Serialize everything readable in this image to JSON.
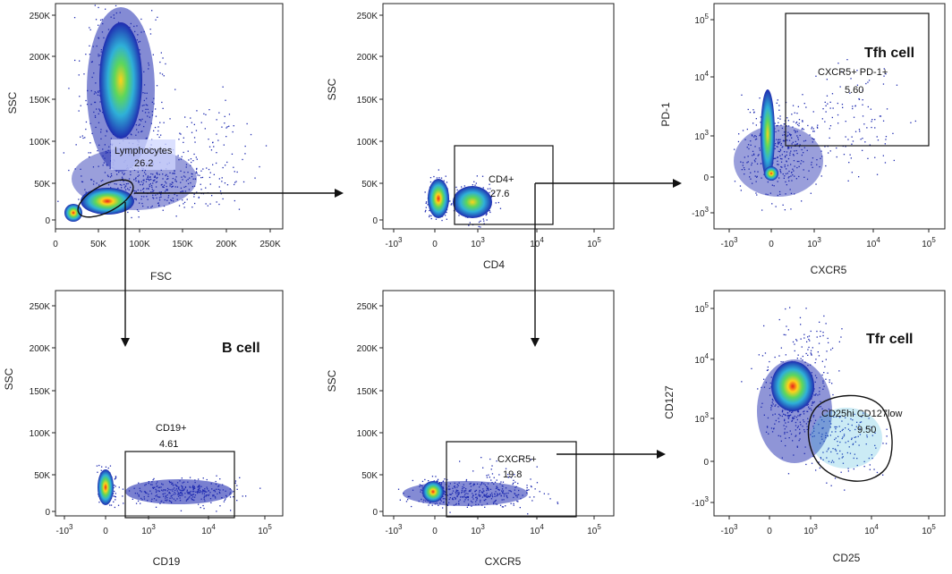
{
  "chart_data": [
    {
      "id": "fsc-ssc",
      "type": "scatter",
      "xlabel": "FSC",
      "ylabel": "SSC",
      "xticks": [
        "0",
        "50K",
        "100K",
        "150K",
        "200K",
        "250K"
      ],
      "yticks": [
        "0",
        "50K",
        "100K",
        "150K",
        "200K",
        "250K"
      ],
      "xlim": [
        0,
        262144
      ],
      "ylim": [
        0,
        262144
      ],
      "gate": {
        "name": "Lymphocytes",
        "value": "26.2"
      }
    },
    {
      "id": "cd4-ssc",
      "type": "scatter",
      "xlabel": "CD4",
      "ylabel": "SSC",
      "xticks": [
        "-10^3",
        "0",
        "10^3",
        "10^4",
        "10^5"
      ],
      "yticks": [
        "0",
        "50K",
        "100K",
        "150K",
        "200K",
        "250K"
      ],
      "gate": {
        "name": "CD4+",
        "value": "27.6"
      }
    },
    {
      "id": "cxcr5-pd1",
      "type": "scatter",
      "xlabel": "CXCR5",
      "ylabel": "PD-1",
      "xticks": [
        "-10^3",
        "0",
        "10^3",
        "10^4",
        "10^5"
      ],
      "yticks": [
        "-10^3",
        "0",
        "10^3",
        "10^4",
        "10^5"
      ],
      "gate": {
        "name": "CXCR5+ PD-1+",
        "value": "5.60"
      },
      "population": "Tfh cell"
    },
    {
      "id": "cd19-ssc",
      "type": "scatter",
      "xlabel": "CD19",
      "ylabel": "SSC",
      "xticks": [
        "-10^3",
        "0",
        "10^3",
        "10^4",
        "10^5"
      ],
      "yticks": [
        "0",
        "50K",
        "100K",
        "150K",
        "200K",
        "250K"
      ],
      "gate": {
        "name": "CD19+",
        "value": "4.61"
      },
      "population": "B cell"
    },
    {
      "id": "cxcr5-ssc",
      "type": "scatter",
      "xlabel": "CXCR5",
      "ylabel": "SSC",
      "xticks": [
        "-10^3",
        "0",
        "10^3",
        "10^4",
        "10^5"
      ],
      "yticks": [
        "0",
        "50K",
        "100K",
        "150K",
        "200K",
        "250K"
      ],
      "gate": {
        "name": "CXCR5+",
        "value": "19.8"
      }
    },
    {
      "id": "cd25-cd127",
      "type": "scatter",
      "xlabel": "CD25",
      "ylabel": "CD127",
      "xticks": [
        "-10^3",
        "0",
        "10^3",
        "10^4",
        "10^5"
      ],
      "yticks": [
        "-10^3",
        "0",
        "10^3",
        "10^4",
        "10^5"
      ],
      "gate": {
        "name": "CD25hi CD127low",
        "value": "9.50"
      },
      "population": "Tfr cell"
    }
  ],
  "colors": {
    "density_low": "#1f2bb0",
    "density_mid": "#2fb0d8",
    "density_midhigh": "#5cd65c",
    "density_high": "#ffd21a",
    "density_peak": "#e8231a",
    "gate": "#111111",
    "frame": "#222222"
  }
}
